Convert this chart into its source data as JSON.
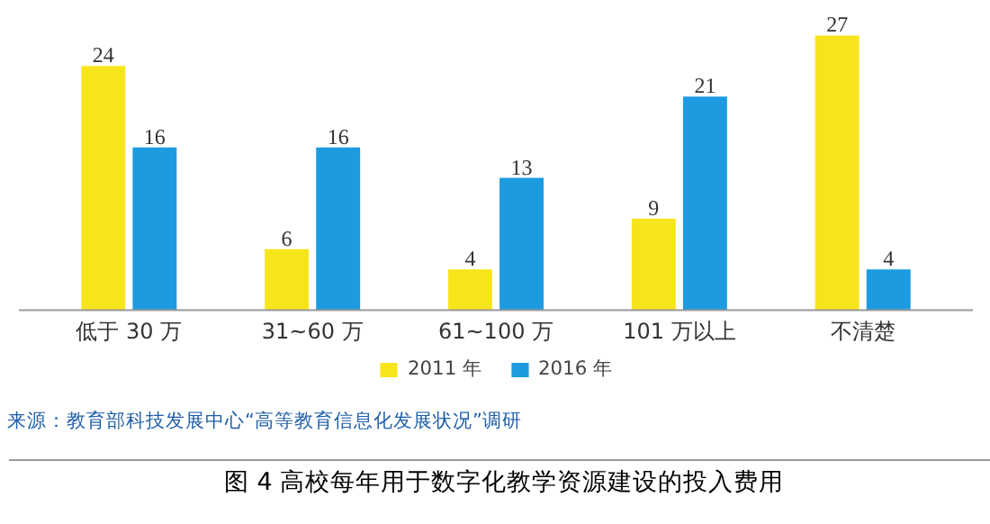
{
  "chart_data": {
    "type": "bar",
    "title": "图 4  高校每年用于数字化教学资源建设的投入费用",
    "categories": [
      "低于 30 万",
      "31~60 万",
      "61~100 万",
      "101 万以上",
      "不清楚"
    ],
    "series": [
      {
        "name": "2011 年",
        "color": "#f7e51c",
        "values": [
          24,
          6,
          4,
          9,
          27
        ]
      },
      {
        "name": "2016 年",
        "color": "#1d9be0",
        "values": [
          16,
          16,
          13,
          21,
          4
        ]
      }
    ],
    "data_labels": true,
    "grid": false,
    "legend": "bottom",
    "annotations": [
      "来源：教育部科技发展中心“高等教育信息化发展状况”调研"
    ]
  }
}
